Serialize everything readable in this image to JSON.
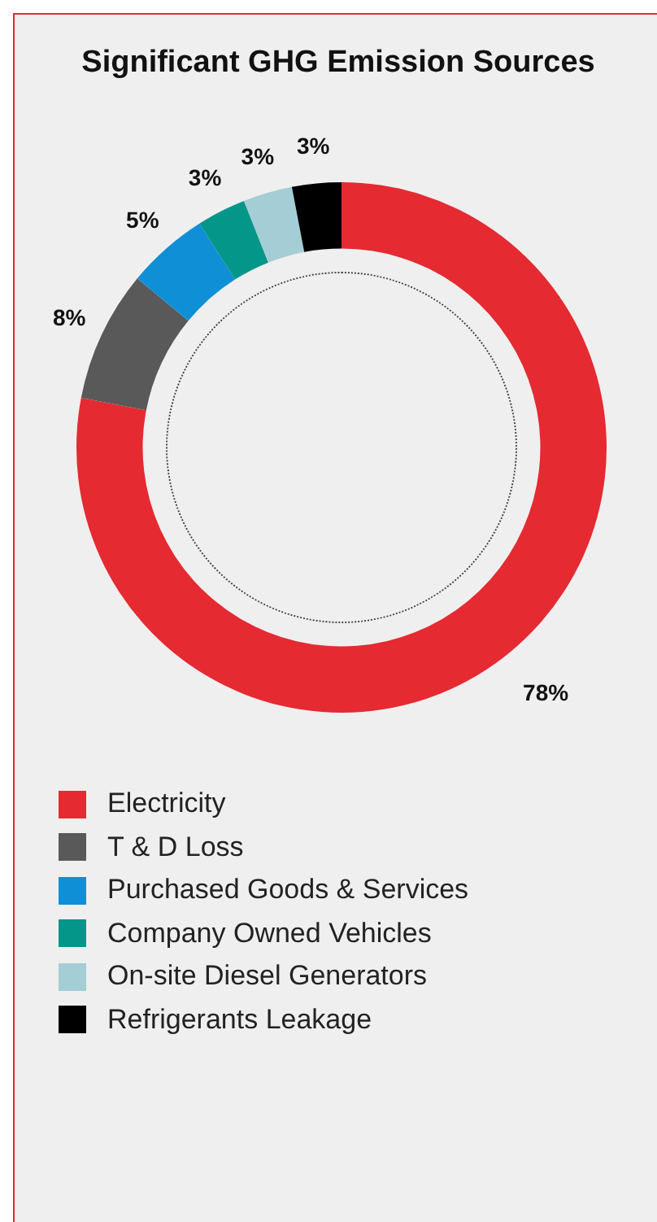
{
  "chart_data": {
    "type": "donut",
    "title": "Significant GHG Emission Sources",
    "categories": [
      "Electricity",
      "T & D Loss",
      "Purchased Goods & Services",
      "Company Owned Vehicles",
      "On-site Diesel Generators",
      "Refrigerants Leakage"
    ],
    "values": [
      78,
      8,
      5,
      3,
      3,
      3
    ],
    "colors": [
      "#e52a32",
      "#595959",
      "#0f8fd6",
      "#05968a",
      "#a4cdd5",
      "#000000"
    ],
    "value_labels": [
      "78%",
      "8%",
      "5%",
      "3%",
      "3%",
      "3%"
    ],
    "legend": "bottom"
  }
}
